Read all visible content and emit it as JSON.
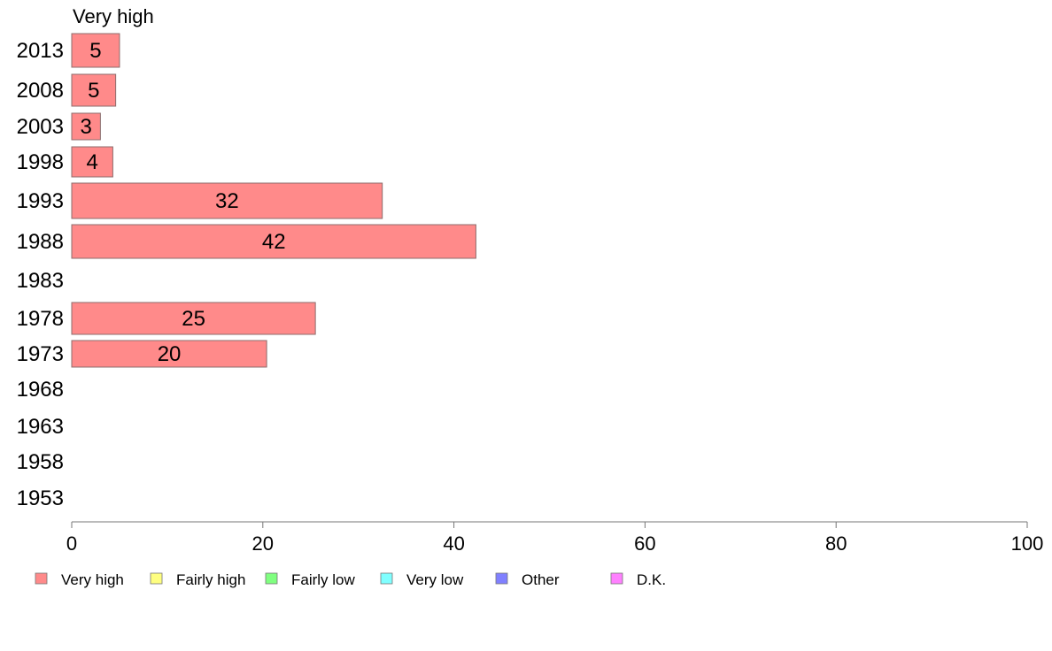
{
  "chart_data": {
    "type": "bar",
    "orientation": "horizontal",
    "title": "Very high",
    "categories": [
      "2013",
      "2008",
      "2003",
      "1998",
      "1993",
      "1988",
      "1983",
      "1978",
      "1973",
      "1968",
      "1963",
      "1958",
      "1953"
    ],
    "series": [
      {
        "name": "Very high",
        "color": "#ff8a8a",
        "values": [
          5,
          5,
          3,
          4,
          32,
          42,
          null,
          25,
          20,
          null,
          null,
          null,
          null
        ],
        "labels": [
          "5",
          "5",
          "3",
          "4",
          "32",
          "42",
          "",
          "25",
          "20",
          "",
          "",
          "",
          ""
        ],
        "bar_values": [
          5,
          4.6,
          3,
          4.3,
          32.5,
          42.3,
          null,
          25.5,
          20.4,
          null,
          null,
          null,
          null
        ]
      }
    ],
    "xlim": [
      0,
      100
    ],
    "xticks": [
      "0",
      "20",
      "40",
      "60",
      "80",
      "100"
    ],
    "xticks_values": [
      0,
      20,
      40,
      60,
      80,
      100
    ],
    "grid": false,
    "legend_position": "bottom",
    "legend": [
      {
        "name": "Very high",
        "color": "#ff8a8a"
      },
      {
        "name": "Fairly high",
        "color": "#ffff80"
      },
      {
        "name": "Fairly low",
        "color": "#80ff80"
      },
      {
        "name": "Very low",
        "color": "#80ffff"
      },
      {
        "name": "Other",
        "color": "#8080ff"
      },
      {
        "name": "D.K.",
        "color": "#ff80ff"
      }
    ]
  }
}
